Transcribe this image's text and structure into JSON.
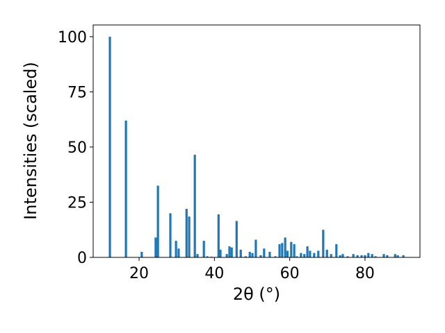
{
  "chart_data": {
    "type": "bar",
    "x_label": "2θ (°)",
    "y_label": "Intensities (scaled)",
    "x": [
      12.24,
      16.5,
      20.7,
      24.4,
      25.0,
      28.3,
      29.8,
      30.5,
      32.6,
      33.3,
      34.8,
      35.5,
      37.2,
      38.1,
      39.2,
      41.1,
      41.6,
      43.3,
      44.0,
      44.6,
      45.9,
      47.0,
      48.3,
      49.4,
      50.1,
      51.0,
      52.3,
      53.2,
      54.7,
      56.2,
      57.3,
      58.0,
      58.8,
      59.4,
      60.4,
      61.2,
      61.9,
      63.0,
      63.9,
      64.7,
      65.4,
      66.5,
      67.6,
      68.9,
      69.9,
      71.0,
      72.4,
      73.4,
      74.1,
      75.4,
      76.9,
      78.0,
      79.1,
      80.0,
      80.9,
      81.9,
      82.8,
      85.0,
      85.9,
      88.0,
      88.7,
      90.2
    ],
    "values": [
      100,
      62,
      2.5,
      9,
      32.5,
      20,
      7.5,
      4,
      22,
      18.5,
      46.5,
      1.5,
      7.5,
      0.5,
      0.3,
      19.5,
      3.5,
      1.5,
      5,
      4.5,
      16.5,
      3.5,
      0.5,
      2.5,
      2,
      8,
      1,
      4,
      2.5,
      0.5,
      6,
      6.5,
      9,
      3,
      7,
      6,
      0.5,
      2,
      1.5,
      5,
      3,
      2,
      3,
      12.5,
      3.5,
      1.5,
      6,
      1,
      1.5,
      0.5,
      1.5,
      1,
      1,
      1,
      2,
      1.5,
      0.5,
      1.5,
      1,
      1.5,
      1,
      1
    ],
    "color": "#1f77b4",
    "xlim": [
      7.8,
      94.6
    ],
    "xticks": [
      20,
      40,
      60,
      80
    ],
    "ylim": [
      0,
      105.3
    ],
    "yticks": [
      0,
      25,
      50,
      75,
      100
    ],
    "grid": false
  }
}
